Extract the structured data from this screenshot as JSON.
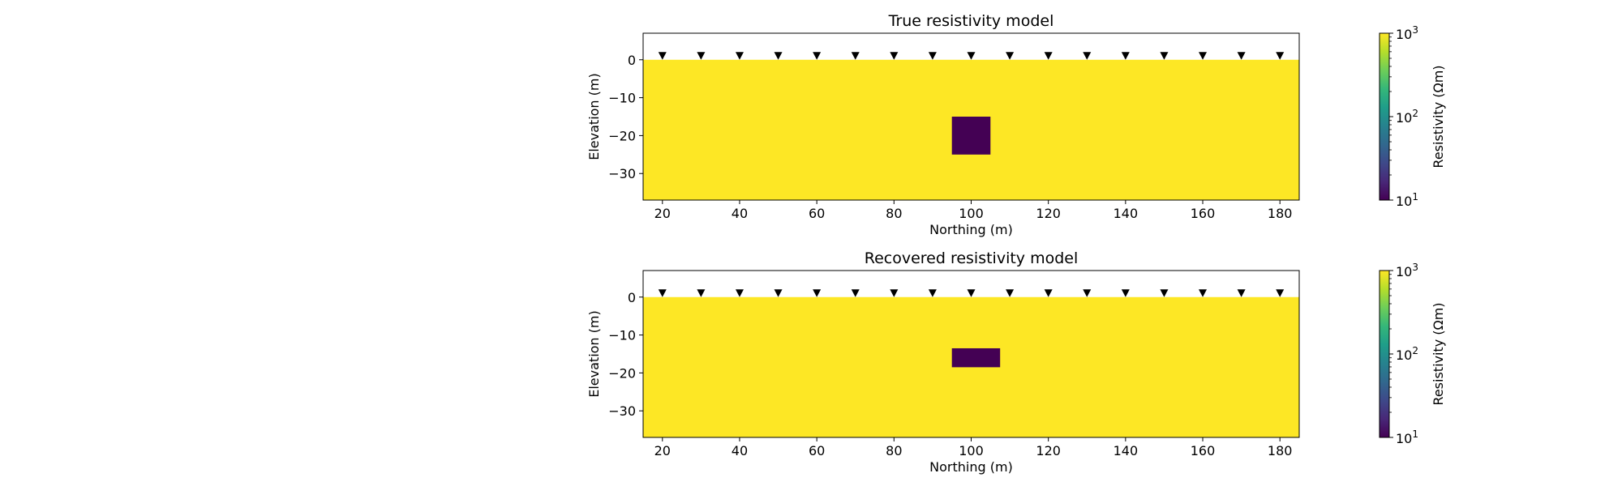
{
  "colors": {
    "background_model": "#fde725",
    "anomaly": "#440154",
    "air": "#ffffff",
    "electrode_marker": "#000000",
    "colormap": [
      "#440154",
      "#482878",
      "#3e4989",
      "#31688e",
      "#26828e",
      "#1f9e89",
      "#35b779",
      "#6ece58",
      "#b5de2b",
      "#fde725"
    ]
  },
  "icons": {
    "electrode": "triangle-down-marker"
  },
  "chart_data": [
    {
      "type": "heatmap",
      "title": "True resistivity model",
      "xlabel": "Northing (m)",
      "ylabel": "Elevation (m)",
      "xlim": [
        15,
        185
      ],
      "ylim": [
        -37,
        7
      ],
      "xticks": [
        20,
        40,
        60,
        80,
        100,
        120,
        140,
        160,
        180
      ],
      "yticks": [
        0,
        -10,
        -20,
        -30
      ],
      "xtick_labels": [
        "20",
        "40",
        "60",
        "80",
        "100",
        "120",
        "140",
        "160",
        "180"
      ],
      "ytick_labels": [
        "0",
        "−10",
        "−20",
        "−30"
      ],
      "background_resistivity": 1000,
      "anomaly": {
        "x": [
          95,
          105
        ],
        "y": [
          -25,
          -15
        ],
        "resistivity": 10
      },
      "electrodes_x": [
        20,
        30,
        40,
        50,
        60,
        70,
        80,
        90,
        100,
        110,
        120,
        130,
        140,
        150,
        160,
        170,
        180
      ],
      "electrodes_elevation": 0,
      "colorbar": {
        "label": "Resistivity (Ωm)",
        "scale": "log",
        "range": [
          10,
          1000
        ],
        "ticks": [
          {
            "base": "10",
            "exp": "3",
            "value": 1000
          },
          {
            "base": "10",
            "exp": "2",
            "value": 100
          },
          {
            "base": "10",
            "exp": "1",
            "value": 10
          }
        ]
      },
      "grid": false
    },
    {
      "type": "heatmap",
      "title": "Recovered resistivity model",
      "xlabel": "Northing (m)",
      "ylabel": "Elevation (m)",
      "xlim": [
        15,
        185
      ],
      "ylim": [
        -37,
        7
      ],
      "xticks": [
        20,
        40,
        60,
        80,
        100,
        120,
        140,
        160,
        180
      ],
      "yticks": [
        0,
        -10,
        -20,
        -30
      ],
      "xtick_labels": [
        "20",
        "40",
        "60",
        "80",
        "100",
        "120",
        "140",
        "160",
        "180"
      ],
      "ytick_labels": [
        "0",
        "−10",
        "−20",
        "−30"
      ],
      "background_resistivity": 1000,
      "anomaly": {
        "x": [
          95,
          107.5
        ],
        "y": [
          -18.5,
          -13.5
        ],
        "resistivity": 10
      },
      "electrodes_x": [
        20,
        30,
        40,
        50,
        60,
        70,
        80,
        90,
        100,
        110,
        120,
        130,
        140,
        150,
        160,
        170,
        180
      ],
      "electrodes_elevation": 0,
      "colorbar": {
        "label": "Resistivity (Ωm)",
        "scale": "log",
        "range": [
          10,
          1000
        ],
        "ticks": [
          {
            "base": "10",
            "exp": "3",
            "value": 1000
          },
          {
            "base": "10",
            "exp": "2",
            "value": 100
          },
          {
            "base": "10",
            "exp": "1",
            "value": 10
          }
        ]
      },
      "grid": false
    }
  ]
}
